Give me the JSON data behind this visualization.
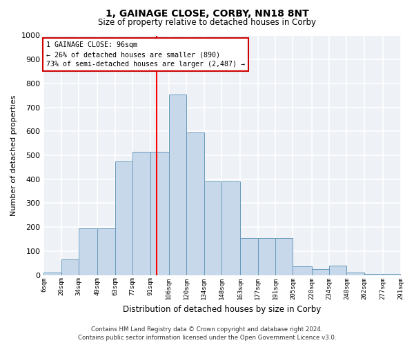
{
  "title": "1, GAINAGE CLOSE, CORBY, NN18 8NT",
  "subtitle": "Size of property relative to detached houses in Corby",
  "xlabel": "Distribution of detached houses by size in Corby",
  "ylabel": "Number of detached properties",
  "footer_line1": "Contains HM Land Registry data © Crown copyright and database right 2024.",
  "footer_line2": "Contains public sector information licensed under the Open Government Licence v3.0.",
  "bin_edges": [
    6,
    20,
    34,
    49,
    63,
    77,
    91,
    106,
    120,
    134,
    148,
    163,
    177,
    191,
    205,
    220,
    234,
    248,
    262,
    277,
    291
  ],
  "values": [
    10,
    65,
    195,
    195,
    475,
    515,
    515,
    755,
    595,
    390,
    390,
    155,
    155,
    155,
    35,
    25,
    40,
    10,
    5,
    5
  ],
  "tick_labels": [
    "6sqm",
    "20sqm",
    "34sqm",
    "49sqm",
    "63sqm",
    "77sqm",
    "91sqm",
    "106sqm",
    "120sqm",
    "134sqm",
    "148sqm",
    "163sqm",
    "177sqm",
    "191sqm",
    "205sqm",
    "220sqm",
    "234sqm",
    "248sqm",
    "262sqm",
    "277sqm",
    "291sqm"
  ],
  "bar_color": "#c8d8eb",
  "bar_edge_color": "#6699bb",
  "red_line_x": 96,
  "annotation_line1": "1 GAINAGE CLOSE: 96sqm",
  "annotation_line2": "← 26% of detached houses are smaller (890)",
  "annotation_line3": "73% of semi-detached houses are larger (2,487) →",
  "annotation_box_facecolor": "#ffffff",
  "annotation_box_edgecolor": "#cc0000",
  "ylim": [
    0,
    1000
  ],
  "xlim_left": 6,
  "xlim_right": 291,
  "plot_bg_color": "#eef2f7",
  "grid_color": "#ffffff",
  "grid_linewidth": 1.2
}
